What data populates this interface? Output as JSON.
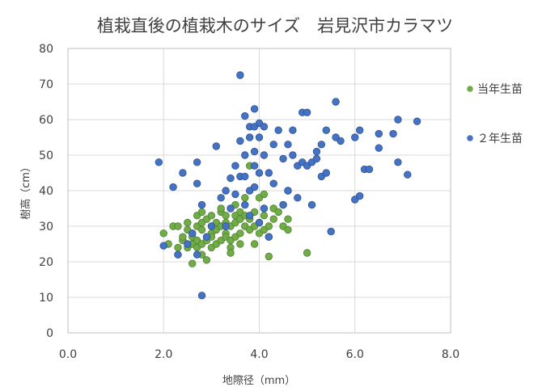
{
  "chart_data": {
    "type": "scatter",
    "title": "植栽直後の植栽木のサイズ　岩見沢市カラマツ",
    "xlabel": "地際径（mm）",
    "ylabel": "樹高（cm）",
    "xlim": [
      0,
      8
    ],
    "ylim": [
      0,
      80
    ],
    "xticks": [
      "0.0",
      "2.0",
      "4.0",
      "6.0",
      "8.0"
    ],
    "yticks": [
      "0",
      "10",
      "20",
      "30",
      "40",
      "50",
      "60",
      "70",
      "80"
    ],
    "grid": true,
    "legend_position": "right",
    "series": [
      {
        "name": "当年生苗",
        "color": "#70ad47",
        "points": [
          [
            2.0,
            28
          ],
          [
            2.1,
            25
          ],
          [
            2.2,
            30
          ],
          [
            2.3,
            30
          ],
          [
            2.3,
            22
          ],
          [
            2.3,
            24
          ],
          [
            2.4,
            26
          ],
          [
            2.4,
            27
          ],
          [
            2.5,
            24
          ],
          [
            2.5,
            29
          ],
          [
            2.5,
            31
          ],
          [
            2.6,
            25
          ],
          [
            2.6,
            27
          ],
          [
            2.6,
            28
          ],
          [
            2.6,
            19.5
          ],
          [
            2.7,
            24
          ],
          [
            2.7,
            26
          ],
          [
            2.7,
            30
          ],
          [
            2.7,
            33
          ],
          [
            2.8,
            25
          ],
          [
            2.8,
            22
          ],
          [
            2.8,
            29
          ],
          [
            2.8,
            31
          ],
          [
            2.8,
            34
          ],
          [
            2.9,
            26
          ],
          [
            2.9,
            20.5
          ],
          [
            2.9,
            32
          ],
          [
            3.0,
            28
          ],
          [
            3.0,
            24
          ],
          [
            3.0,
            27
          ],
          [
            3.0,
            33
          ],
          [
            3.1,
            25
          ],
          [
            3.1,
            29
          ],
          [
            3.1,
            31
          ],
          [
            3.2,
            26
          ],
          [
            3.2,
            30
          ],
          [
            3.2,
            34
          ],
          [
            3.2,
            35
          ],
          [
            3.3,
            28
          ],
          [
            3.3,
            31
          ],
          [
            3.3,
            33
          ],
          [
            3.3,
            27
          ],
          [
            3.4,
            24
          ],
          [
            3.4,
            26
          ],
          [
            3.4,
            22.5
          ],
          [
            3.4,
            30
          ],
          [
            3.5,
            27
          ],
          [
            3.5,
            31
          ],
          [
            3.5,
            33
          ],
          [
            3.5,
            36
          ],
          [
            3.6,
            28
          ],
          [
            3.6,
            32
          ],
          [
            3.6,
            34
          ],
          [
            3.6,
            25
          ],
          [
            3.7,
            30
          ],
          [
            3.7,
            33
          ],
          [
            3.7,
            38
          ],
          [
            3.8,
            29
          ],
          [
            3.8,
            32
          ],
          [
            3.8,
            47
          ],
          [
            3.9,
            30
          ],
          [
            3.9,
            34
          ],
          [
            3.9,
            25
          ],
          [
            4.0,
            28
          ],
          [
            4.0,
            31
          ],
          [
            4.0,
            38
          ],
          [
            4.1,
            29
          ],
          [
            4.1,
            33
          ],
          [
            4.1,
            39
          ],
          [
            4.2,
            27
          ],
          [
            4.2,
            30
          ],
          [
            4.2,
            21.5
          ],
          [
            4.3,
            32
          ],
          [
            4.3,
            35
          ],
          [
            4.4,
            34
          ],
          [
            4.5,
            30
          ],
          [
            4.5,
            36
          ],
          [
            4.6,
            29
          ],
          [
            4.6,
            32
          ],
          [
            4.6,
            40
          ],
          [
            5.0,
            22.5
          ]
        ]
      },
      {
        "name": "２年生苗",
        "color": "#4472c4",
        "points": [
          [
            1.9,
            48
          ],
          [
            2.0,
            24.5
          ],
          [
            2.2,
            41
          ],
          [
            2.3,
            22
          ],
          [
            2.4,
            45
          ],
          [
            2.5,
            25
          ],
          [
            2.6,
            28
          ],
          [
            2.7,
            42
          ],
          [
            2.7,
            48
          ],
          [
            2.7,
            22
          ],
          [
            2.8,
            10.5
          ],
          [
            2.8,
            36
          ],
          [
            2.9,
            27
          ],
          [
            3.0,
            30
          ],
          [
            3.1,
            52.5
          ],
          [
            3.2,
            38
          ],
          [
            3.3,
            40
          ],
          [
            3.3,
            30
          ],
          [
            3.4,
            35
          ],
          [
            3.4,
            43.5
          ],
          [
            3.5,
            39
          ],
          [
            3.5,
            47
          ],
          [
            3.6,
            72.5
          ],
          [
            3.6,
            54
          ],
          [
            3.6,
            44
          ],
          [
            3.7,
            61
          ],
          [
            3.7,
            50
          ],
          [
            3.7,
            36
          ],
          [
            3.7,
            44
          ],
          [
            3.8,
            58
          ],
          [
            3.8,
            55
          ],
          [
            3.8,
            40
          ],
          [
            3.8,
            33
          ],
          [
            3.9,
            63
          ],
          [
            3.9,
            58
          ],
          [
            3.9,
            51
          ],
          [
            3.9,
            47
          ],
          [
            3.9,
            41
          ],
          [
            4.0,
            59
          ],
          [
            4.0,
            55
          ],
          [
            4.0,
            45
          ],
          [
            4.0,
            31
          ],
          [
            4.1,
            58
          ],
          [
            4.1,
            50
          ],
          [
            4.1,
            35
          ],
          [
            4.2,
            45
          ],
          [
            4.2,
            27
          ],
          [
            4.3,
            53
          ],
          [
            4.3,
            42
          ],
          [
            4.4,
            57
          ],
          [
            4.5,
            49
          ],
          [
            4.5,
            36
          ],
          [
            4.6,
            53
          ],
          [
            4.6,
            40
          ],
          [
            4.7,
            57
          ],
          [
            4.7,
            50
          ],
          [
            4.8,
            47
          ],
          [
            4.8,
            38
          ],
          [
            4.9,
            62
          ],
          [
            4.9,
            48
          ],
          [
            5.0,
            62
          ],
          [
            5.0,
            47
          ],
          [
            5.1,
            48
          ],
          [
            5.1,
            36
          ],
          [
            5.2,
            51
          ],
          [
            5.2,
            49
          ],
          [
            5.3,
            53
          ],
          [
            5.3,
            44
          ],
          [
            5.4,
            57
          ],
          [
            5.4,
            45
          ],
          [
            5.5,
            28.5
          ],
          [
            5.6,
            65
          ],
          [
            5.6,
            55
          ],
          [
            5.7,
            54
          ],
          [
            6.0,
            55
          ],
          [
            6.0,
            37.5
          ],
          [
            6.1,
            38.5
          ],
          [
            6.1,
            57
          ],
          [
            6.2,
            46
          ],
          [
            6.3,
            46
          ],
          [
            6.5,
            56
          ],
          [
            6.5,
            52
          ],
          [
            6.8,
            56
          ],
          [
            6.9,
            48
          ],
          [
            6.9,
            60
          ],
          [
            7.1,
            44.5
          ],
          [
            7.3,
            59.5
          ]
        ]
      }
    ]
  }
}
